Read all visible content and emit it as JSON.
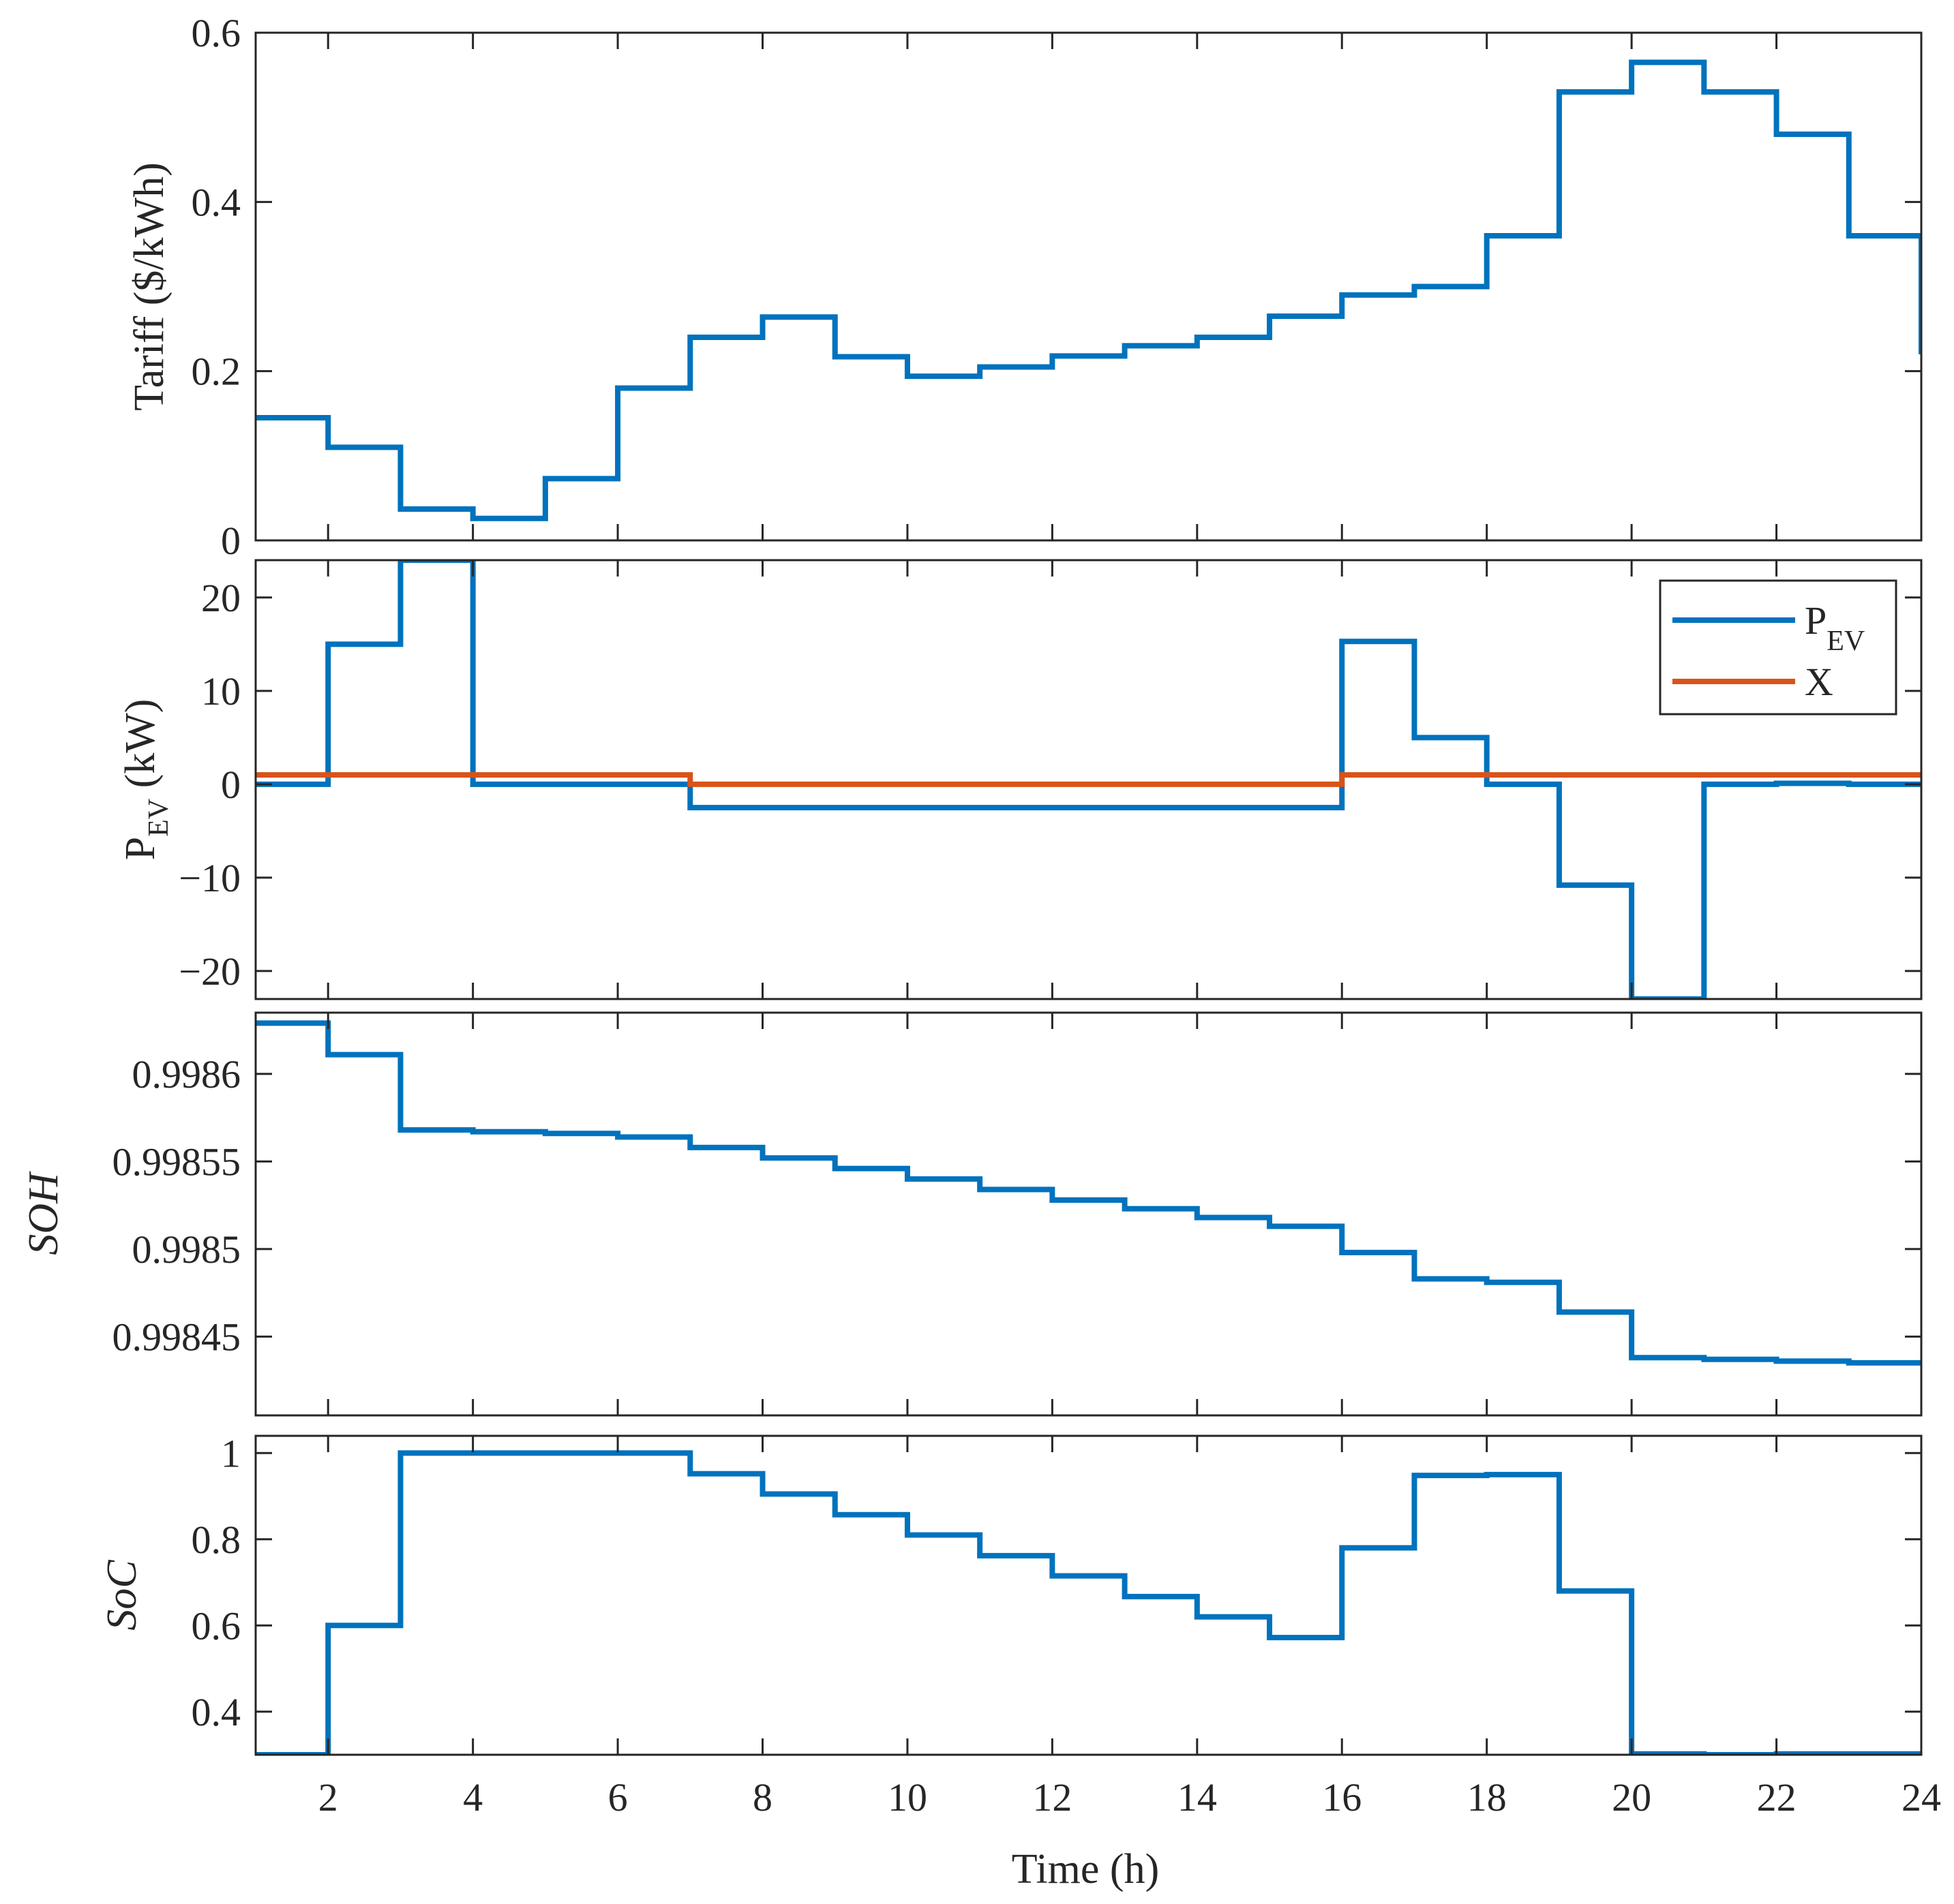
{
  "figure": {
    "xlabel": "Time (h)",
    "colors": {
      "blue": "#0072BD",
      "orange": "#D95319",
      "axis": "#262626"
    }
  },
  "chart_data": [
    {
      "type": "line",
      "step": true,
      "title": "",
      "ylabel": "Tariff ($/kWh)",
      "xlim": [
        1,
        24
      ],
      "ylim": [
        0,
        0.6
      ],
      "xticks": [
        2,
        4,
        6,
        8,
        10,
        12,
        14,
        16,
        18,
        20,
        22,
        24
      ],
      "xtick_labels": [],
      "yticks": [
        0,
        0.2,
        0.4,
        0.6
      ],
      "ytick_labels": [
        "0",
        "0.2",
        "0.4",
        "0.6"
      ],
      "x": [
        1,
        2,
        3,
        4,
        5,
        6,
        7,
        8,
        9,
        10,
        11,
        12,
        13,
        14,
        15,
        16,
        17,
        18,
        19,
        20,
        21,
        22,
        23,
        24
      ],
      "series": [
        {
          "name": "Tariff",
          "color": "#0072BD",
          "values": [
            0.145,
            0.11,
            0.037,
            0.026,
            0.073,
            0.18,
            0.24,
            0.264,
            0.217,
            0.194,
            0.205,
            0.218,
            0.23,
            0.24,
            0.265,
            0.29,
            0.3,
            0.36,
            0.53,
            0.565,
            0.53,
            0.48,
            0.36,
            0.22
          ]
        }
      ]
    },
    {
      "type": "line",
      "step": true,
      "ylabel": "P",
      "ylabel_sub": "EV",
      "ylabel_unit": " (kW)",
      "xlim": [
        1,
        24
      ],
      "ylim": [
        -23,
        24
      ],
      "xticks": [
        2,
        4,
        6,
        8,
        10,
        12,
        14,
        16,
        18,
        20,
        22,
        24
      ],
      "xtick_labels": [],
      "yticks": [
        -20,
        -10,
        0,
        10,
        20
      ],
      "ytick_labels": [
        "−20",
        "−10",
        "0",
        "10",
        "20"
      ],
      "x": [
        1,
        2,
        3,
        4,
        5,
        6,
        7,
        8,
        9,
        10,
        11,
        12,
        13,
        14,
        15,
        16,
        17,
        18,
        19,
        20,
        21,
        22,
        23,
        24
      ],
      "legend": {
        "position": "top-right",
        "entries": [
          {
            "label": "P",
            "sub": "EV",
            "color": "#0072BD"
          },
          {
            "label": "X",
            "sub": "",
            "color": "#D95319"
          }
        ]
      },
      "series": [
        {
          "name": "P_EV",
          "color": "#0072BD",
          "values": [
            0,
            15,
            24,
            0,
            0,
            0,
            -2.5,
            -2.5,
            -2.5,
            -2.5,
            -2.5,
            -2.5,
            -2.5,
            -2.5,
            -2.5,
            15.3,
            5,
            0,
            -10.8,
            -23,
            0,
            0.1,
            0,
            0
          ]
        },
        {
          "name": "X",
          "color": "#D95319",
          "values": [
            1,
            1,
            1,
            1,
            1,
            1,
            0,
            0,
            0,
            0,
            0,
            0,
            0,
            0,
            0,
            1,
            1,
            1,
            1,
            1,
            1,
            1,
            1,
            1
          ]
        }
      ]
    },
    {
      "type": "line",
      "step": true,
      "ylabel": "SOH",
      "ylabel_style": "italic",
      "xlim": [
        1,
        24
      ],
      "ylim": [
        0.998405,
        0.998635
      ],
      "xticks": [
        2,
        4,
        6,
        8,
        10,
        12,
        14,
        16,
        18,
        20,
        22,
        24
      ],
      "xtick_labels": [],
      "yticks": [
        0.99845,
        0.9985,
        0.99855,
        0.9986
      ],
      "ytick_labels": [
        "0.99845",
        "0.9985",
        "0.99855",
        "0.9986"
      ],
      "x": [
        1,
        2,
        3,
        4,
        5,
        6,
        7,
        8,
        9,
        10,
        11,
        12,
        13,
        14,
        15,
        16,
        17,
        18,
        19,
        20,
        21,
        22,
        23,
        24
      ],
      "series": [
        {
          "name": "SOH",
          "color": "#0072BD",
          "values": [
            0.998629,
            0.998611,
            0.998568,
            0.998567,
            0.998566,
            0.998564,
            0.998558,
            0.998552,
            0.998546,
            0.99854,
            0.998534,
            0.998528,
            0.998523,
            0.998518,
            0.998513,
            0.998498,
            0.998483,
            0.998481,
            0.998464,
            0.998438,
            0.998437,
            0.998436,
            0.998435,
            0.998434
          ]
        }
      ]
    },
    {
      "type": "line",
      "step": true,
      "ylabel": "SoC",
      "ylabel_style": "italic",
      "xlim": [
        1,
        24
      ],
      "ylim": [
        0.3,
        1.04
      ],
      "xticks": [
        2,
        4,
        6,
        8,
        10,
        12,
        14,
        16,
        18,
        20,
        22,
        24
      ],
      "xtick_labels": [
        "2",
        "4",
        "6",
        "8",
        "10",
        "12",
        "14",
        "16",
        "18",
        "20",
        "22",
        "24"
      ],
      "yticks": [
        0.4,
        0.6,
        0.8,
        1
      ],
      "ytick_labels": [
        "0.4",
        "0.6",
        "0.8",
        "1"
      ],
      "x": [
        1,
        2,
        3,
        4,
        5,
        6,
        7,
        8,
        9,
        10,
        11,
        12,
        13,
        14,
        15,
        16,
        17,
        18,
        19,
        20,
        21,
        22,
        23,
        24
      ],
      "series": [
        {
          "name": "SoC",
          "color": "#0072BD",
          "values": [
            0.3,
            0.6,
            1.0,
            1.0,
            1.0,
            1.0,
            0.952,
            0.905,
            0.857,
            0.81,
            0.762,
            0.715,
            0.667,
            0.62,
            0.572,
            0.78,
            0.948,
            0.95,
            0.68,
            0.302,
            0.3,
            0.302,
            0.302,
            0.302
          ]
        }
      ]
    }
  ]
}
